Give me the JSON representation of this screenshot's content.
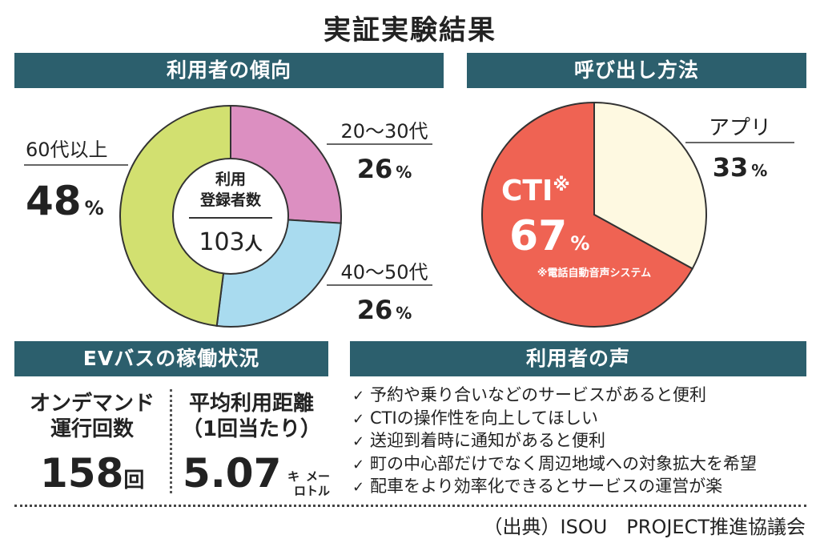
{
  "title": "実証実験結果",
  "sections": {
    "users": "利用者の傾向",
    "call": "呼び出し方法",
    "ev": "EVバスの稼働状況",
    "voice": "利用者の声"
  },
  "chart_data": [
    {
      "type": "pie",
      "title": "利用者の傾向",
      "center_label_line1": "利用",
      "center_label_line2": "登録者数",
      "center_value": "103",
      "center_unit": "人",
      "slices": [
        {
          "label": "20〜30代",
          "value": 26,
          "display": "26",
          "color": "#dc8fc1"
        },
        {
          "label": "40〜50代",
          "value": 26,
          "display": "26",
          "color": "#a9dbef"
        },
        {
          "label": "60代以上",
          "value": 48,
          "display": "48",
          "color": "#d2e070"
        }
      ],
      "unit": "%"
    },
    {
      "type": "pie",
      "title": "呼び出し方法",
      "slices": [
        {
          "label": "アプリ",
          "value": 33,
          "display": "33",
          "color": "#fef9e1"
        },
        {
          "label": "CTI",
          "value": 67,
          "display": "67",
          "color": "#ef6353",
          "mark": "※"
        }
      ],
      "unit": "%",
      "note": "※電話自動音声システム"
    }
  ],
  "ev": {
    "col1_line1": "オンデマンド",
    "col1_line2": "運行回数",
    "col1_value": "158",
    "col1_unit": "回",
    "col2_line1": "平均利用距離",
    "col2_line2": "（1回当たり）",
    "col2_value": "5.07",
    "col2_unit_top": "キ",
    "col2_unit_bottom": "ロ",
    "col2_unit_top2": "メー",
    "col2_unit_bottom2": "トル"
  },
  "voice": {
    "check": "✓",
    "items": [
      "予約や乗り合いなどのサービスがあると便利",
      "CTIの操作性を向上してほしい",
      "送迎到着時に通知があると便利",
      "町の中心部だけでなく周辺地域への対象拡大を希望",
      "配車をより効率化できるとサービスの運営が楽"
    ]
  },
  "source": "（出典）ISOU　PROJECT推進協議会"
}
